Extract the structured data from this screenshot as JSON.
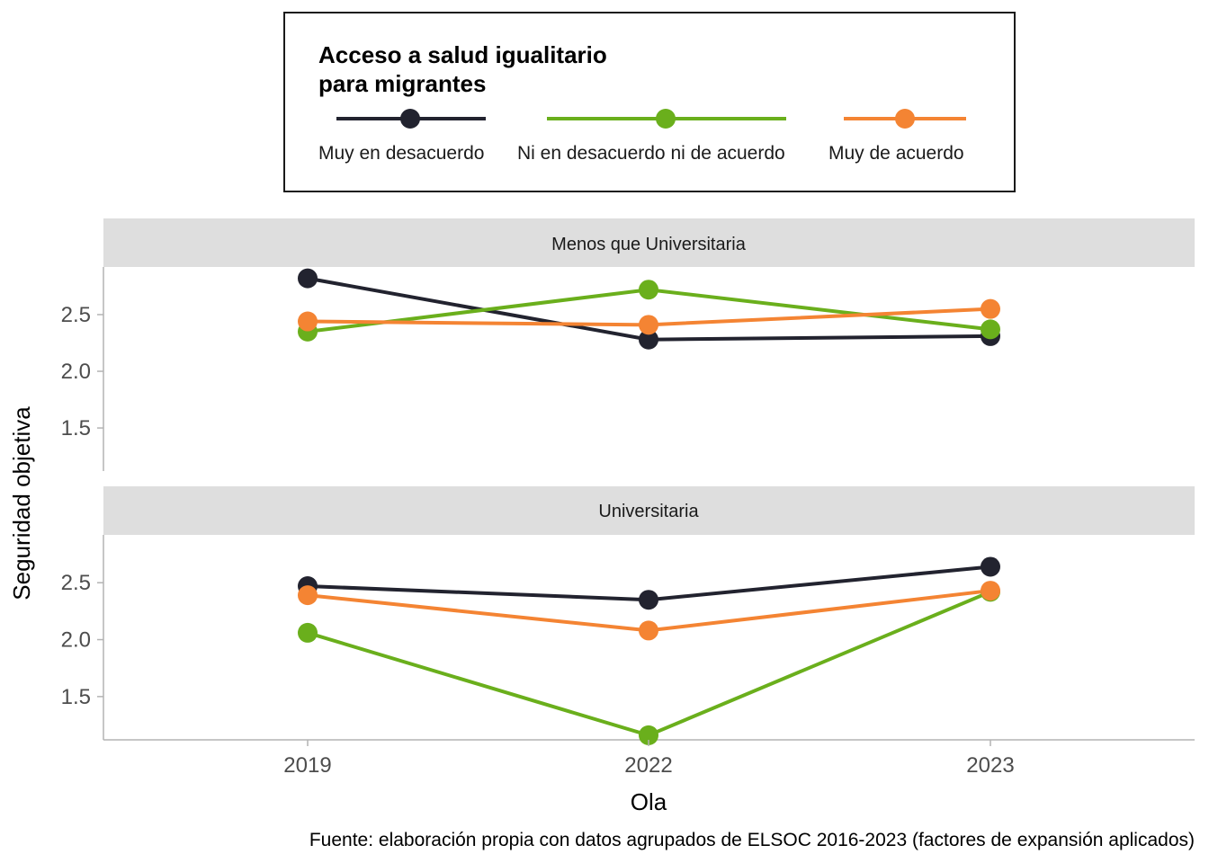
{
  "chart_data": {
    "type": "line",
    "x": [
      "2019",
      "2022",
      "2023"
    ],
    "xlabel": "Ola",
    "ylabel": "Seguridad objetiva",
    "ylim": [
      1.12,
      2.92
    ],
    "yticks": [
      "1.5",
      "2.0",
      "2.5"
    ],
    "legend": {
      "title_line1": "Acceso a salud igualitario",
      "title_line2": "para migrantes",
      "position": "top"
    },
    "caption": "Fuente: elaboración propia con datos agrupados de ELSOC 2016-2023 (factores de expansión aplicados)",
    "series_meta": [
      {
        "name": "Muy en desacuerdo",
        "color": "#22232f"
      },
      {
        "name": "Ni en desacuerdo ni de acuerdo",
        "color": "#6aaf1c"
      },
      {
        "name": "Muy de acuerdo",
        "color": "#f48433"
      }
    ],
    "panels": [
      {
        "label": "Menos que Universitaria",
        "series": [
          {
            "name": "Muy en desacuerdo",
            "values": [
              2.82,
              2.28,
              2.31
            ]
          },
          {
            "name": "Ni en desacuerdo ni de acuerdo",
            "values": [
              2.35,
              2.72,
              2.37
            ]
          },
          {
            "name": "Muy de acuerdo",
            "values": [
              2.44,
              2.41,
              2.55
            ]
          }
        ]
      },
      {
        "label": "Universitaria",
        "series": [
          {
            "name": "Muy en desacuerdo",
            "values": [
              2.47,
              2.35,
              2.64
            ]
          },
          {
            "name": "Ni en desacuerdo ni de acuerdo",
            "values": [
              2.06,
              1.16,
              2.42
            ]
          },
          {
            "name": "Muy de acuerdo",
            "values": [
              2.39,
              2.08,
              2.43
            ]
          }
        ]
      }
    ]
  }
}
